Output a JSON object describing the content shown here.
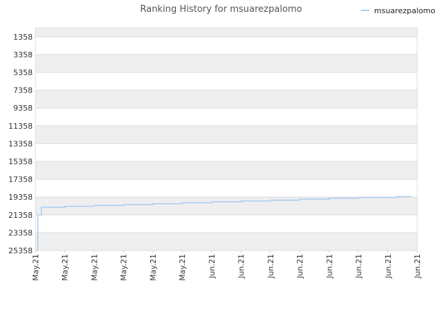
{
  "chart_data": {
    "type": "line",
    "title": "Ranking History for msuarezpalomo",
    "xlabel": "",
    "ylabel": "",
    "y_inverted": true,
    "ylim": [
      25358,
      358
    ],
    "y_ticks": [
      1358,
      3358,
      5358,
      7358,
      9358,
      11358,
      13358,
      15358,
      17358,
      19358,
      21358,
      23358,
      25358
    ],
    "x_ticks": [
      "May.21",
      "May.21",
      "May.21",
      "May.21",
      "May.21",
      "May.21",
      "Jun.21",
      "Jun.21",
      "Jun.21",
      "Jun.21",
      "Jun.21",
      "Jun.21",
      "Jun.21",
      "Jun.21"
    ],
    "grid": true,
    "alternating_bands": true,
    "legend": {
      "position": "top-right"
    },
    "series": [
      {
        "name": "msuarezpalomo",
        "color": "#a9cdf0",
        "x": [
          0,
          0.08,
          0.2,
          1,
          2,
          3,
          4,
          5,
          6,
          7,
          8,
          9,
          10,
          11,
          12.3
        ],
        "y": [
          25358,
          21358,
          20500,
          20400,
          20300,
          20200,
          20100,
          20000,
          19900,
          19800,
          19700,
          19600,
          19500,
          19400,
          19300
        ],
        "x_range": [
          0,
          13
        ]
      }
    ]
  }
}
